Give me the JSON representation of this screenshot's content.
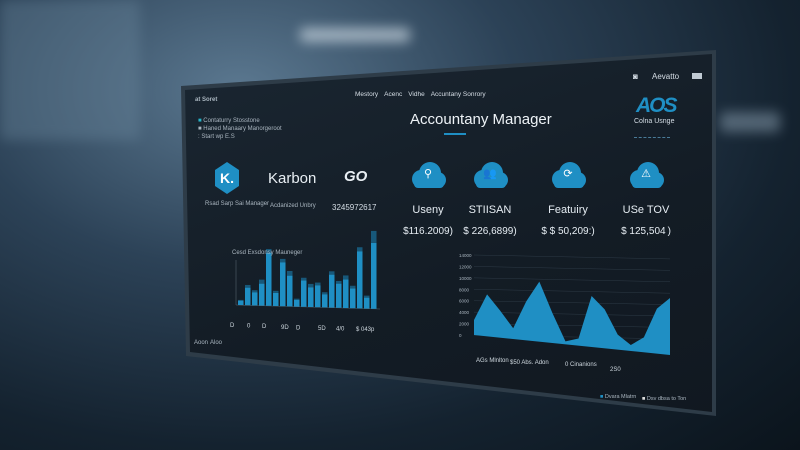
{
  "header": {
    "app_label": "at Soret",
    "nav_items": [
      "Mestory",
      "Acenc",
      "Vidhe",
      "Accuntany Sonrory"
    ],
    "title": "Accountany Manager",
    "user_name": "Aevatto",
    "brand_logo_text": "AOS",
    "brand_caption": "Colna Usnge"
  },
  "sidebar": {
    "items": [
      "Contaturry Stosstone",
      "Haned Manaary Manorgeroot",
      "Start wp E.S"
    ]
  },
  "logos": [
    {
      "icon": "k-logo",
      "mark": "K.",
      "caption": "Rsad Sarp Sai Manager"
    },
    {
      "icon": "karbon-logo",
      "mark": "Karbon",
      "caption": "Acdanized Unbry"
    },
    {
      "icon": "go-logo",
      "mark": "GO",
      "caption": "3245972617"
    }
  ],
  "cards": [
    {
      "icon": "team-cloud-icon",
      "label": "Useny",
      "value": "$116.2009)"
    },
    {
      "icon": "people-cloud-icon",
      "label": "STIISAN",
      "value": "$ 226,6899)"
    },
    {
      "icon": "sync-cloud-icon",
      "label": "Featuiry",
      "value": "$ $ 50,209:)"
    },
    {
      "icon": "delta-cloud-icon",
      "label": "USe TOV",
      "value": "$ 125,504 )"
    }
  ],
  "colors": {
    "accent": "#1f8fc4",
    "accent_dark": "#17688f",
    "panel": "#151f29"
  },
  "chart_data": [
    {
      "type": "bar",
      "title": "Cesd Exsdonsy Mauneger",
      "series": [
        {
          "values": [
            2,
            8,
            6,
            10,
            24,
            6,
            20,
            14,
            3,
            12,
            9,
            10,
            6,
            15,
            11,
            13,
            9,
            26,
            5,
            30
          ]
        },
        {
          "values": [
            1,
            4,
            3,
            6,
            6,
            3,
            5,
            7,
            2,
            4,
            5,
            4,
            3,
            5,
            4,
            6,
            4,
            6,
            3,
            18
          ]
        }
      ],
      "x_labels": [
        "D",
        "0",
        "D",
        "9D",
        "D",
        "5D",
        "4/0",
        "$ 043p"
      ],
      "footer": [
        "Aoon",
        "Aloo"
      ]
    },
    {
      "type": "area",
      "y_ticks": [
        "0",
        "2000",
        "4000",
        "6000",
        "8000",
        "10000",
        "12000",
        "14000"
      ],
      "values": [
        2500,
        7000,
        4500,
        1800,
        6500,
        10000,
        5000,
        500,
        1200,
        8500,
        6500,
        2500,
        1000,
        2500,
        7500,
        9500
      ],
      "ylim": [
        0,
        14000
      ],
      "x_labels": [
        "AGs Mlnlton",
        "$50 Abs. Adon",
        "0 Cinanions",
        "2S0"
      ]
    }
  ],
  "legend": [
    "Dvara Mlatrn",
    "Dsv dbsa to Ton"
  ]
}
